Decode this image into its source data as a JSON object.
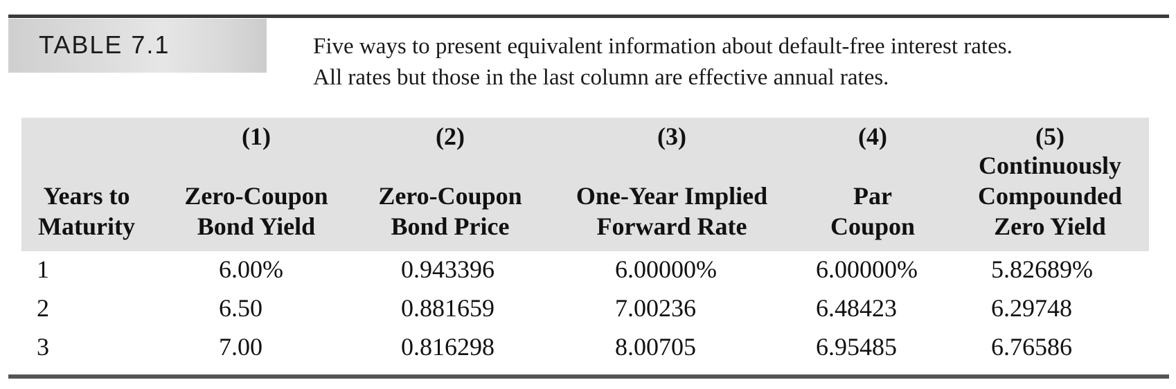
{
  "table_label": "TABLE 7.1",
  "caption": {
    "line1": "Five ways to present equivalent information about default-free interest rates.",
    "line2": "All rates but those in the last column are effective annual rates."
  },
  "columns": [
    {
      "number": "",
      "line1": "",
      "line2": "Years to",
      "line3": "Maturity"
    },
    {
      "number": "(1)",
      "line1": "",
      "line2": "Zero-Coupon",
      "line3": "Bond Yield"
    },
    {
      "number": "(2)",
      "line1": "",
      "line2": "Zero-Coupon",
      "line3": "Bond Price"
    },
    {
      "number": "(3)",
      "line1": "",
      "line2": "One-Year Implied",
      "line3": "Forward Rate"
    },
    {
      "number": "(4)",
      "line1": "",
      "line2": "Par",
      "line3": "Coupon"
    },
    {
      "number": "(5)",
      "line1": "Continuously",
      "line2": "Compounded",
      "line3": "Zero Yield"
    }
  ],
  "rows": [
    [
      "1",
      "6.00%",
      "0.943396",
      "6.00000%",
      "6.00000%",
      "5.82689%"
    ],
    [
      "2",
      "6.50",
      "0.881659",
      "7.00236",
      "6.48423",
      "6.29748"
    ],
    [
      "3",
      "7.00",
      "0.816298",
      "8.00705",
      "6.95485",
      "6.76586"
    ]
  ]
}
